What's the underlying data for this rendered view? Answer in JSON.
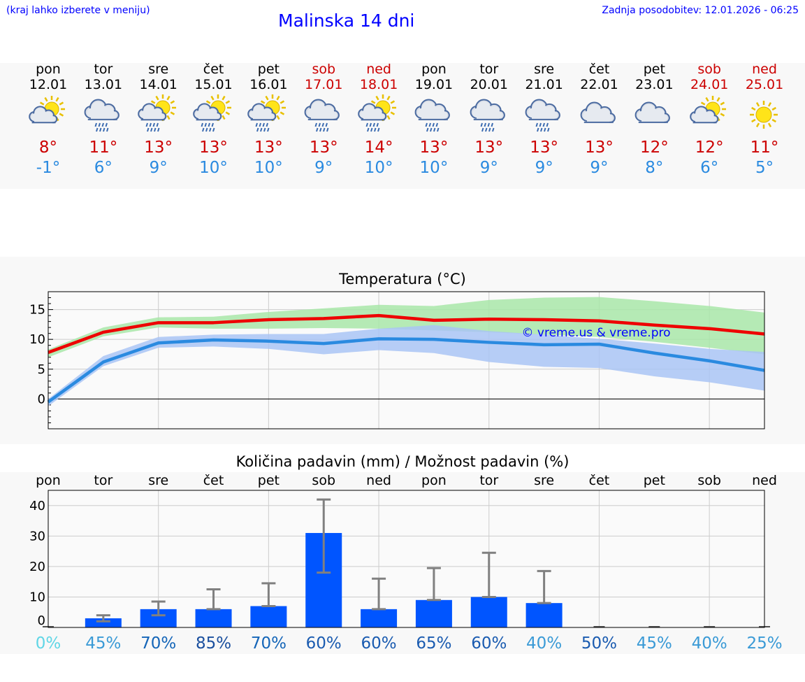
{
  "header": {
    "region_note": "(kraj lahko izberete v meniju)",
    "title": "Malinska 14 dni",
    "updated": "Zadnja posodobitev: 12.01.2026 - 06:25"
  },
  "days": [
    {
      "name": "pon",
      "date": "12.01",
      "weekend": false,
      "icon": "sun-cloud-icon",
      "tmax": "8°",
      "tmin": "-1°"
    },
    {
      "name": "tor",
      "date": "13.01",
      "weekend": false,
      "icon": "cloud-rain-icon",
      "tmax": "11°",
      "tmin": "6°"
    },
    {
      "name": "sre",
      "date": "14.01",
      "weekend": false,
      "icon": "sun-cloud-rain-icon",
      "tmax": "13°",
      "tmin": "9°"
    },
    {
      "name": "čet",
      "date": "15.01",
      "weekend": false,
      "icon": "sun-cloud-rain-icon",
      "tmax": "13°",
      "tmin": "10°"
    },
    {
      "name": "pet",
      "date": "16.01",
      "weekend": false,
      "icon": "sun-cloud-rain-icon",
      "tmax": "13°",
      "tmin": "10°"
    },
    {
      "name": "sob",
      "date": "17.01",
      "weekend": true,
      "icon": "cloud-rain-icon",
      "tmax": "13°",
      "tmin": "9°"
    },
    {
      "name": "ned",
      "date": "18.01",
      "weekend": true,
      "icon": "sun-cloud-rain-icon",
      "tmax": "14°",
      "tmin": "10°"
    },
    {
      "name": "pon",
      "date": "19.01",
      "weekend": false,
      "icon": "cloud-rain-icon",
      "tmax": "13°",
      "tmin": "10°"
    },
    {
      "name": "tor",
      "date": "20.01",
      "weekend": false,
      "icon": "cloud-rain-icon",
      "tmax": "13°",
      "tmin": "9°"
    },
    {
      "name": "sre",
      "date": "21.01",
      "weekend": false,
      "icon": "cloud-rain-icon",
      "tmax": "13°",
      "tmin": "9°"
    },
    {
      "name": "čet",
      "date": "22.01",
      "weekend": false,
      "icon": "cloud-icon",
      "tmax": "13°",
      "tmin": "9°"
    },
    {
      "name": "pet",
      "date": "23.01",
      "weekend": false,
      "icon": "cloud-icon",
      "tmax": "12°",
      "tmin": "8°"
    },
    {
      "name": "sob",
      "date": "24.01",
      "weekend": true,
      "icon": "sun-cloud-icon",
      "tmax": "12°",
      "tmin": "6°"
    },
    {
      "name": "ned",
      "date": "25.01",
      "weekend": true,
      "icon": "sun-icon",
      "tmax": "11°",
      "tmin": "5°"
    }
  ],
  "colors": {
    "max_line": "#ee0000",
    "min_line": "#2a8ae0",
    "max_band": "#a8e6a8",
    "min_band": "#a9c4f5",
    "bar": "#0055ff",
    "err": "#808080",
    "weekend": "#cc0000",
    "watermark": "#0000ff"
  },
  "chart_data": [
    {
      "type": "line",
      "title": "Temperatura (°C)",
      "x": [
        0,
        1,
        2,
        3,
        4,
        5,
        6,
        7,
        8,
        9,
        10,
        11,
        12,
        13
      ],
      "ylim": [
        -5,
        18
      ],
      "yticks": [
        0,
        5,
        10,
        15
      ],
      "grid": true,
      "watermark": "© vreme.us & vreme.pro",
      "series": [
        {
          "name": "max",
          "values": [
            7.8,
            11.2,
            12.8,
            12.8,
            13.3,
            13.5,
            14.0,
            13.2,
            13.4,
            13.3,
            13.1,
            12.4,
            11.8,
            10.9
          ],
          "band_low": [
            7.0,
            10.5,
            12.0,
            11.8,
            11.8,
            11.9,
            11.8,
            11.5,
            11.2,
            10.8,
            10.4,
            9.6,
            8.6,
            7.5
          ],
          "band_high": [
            8.3,
            12.0,
            13.7,
            13.8,
            14.6,
            15.2,
            15.8,
            15.6,
            16.6,
            17.0,
            17.1,
            16.4,
            15.6,
            14.5
          ]
        },
        {
          "name": "min",
          "values": [
            -0.5,
            6.2,
            9.4,
            9.9,
            9.7,
            9.3,
            10.1,
            10.0,
            9.5,
            9.1,
            9.2,
            7.7,
            6.4,
            4.8
          ],
          "band_low": [
            -1.2,
            5.5,
            8.6,
            8.8,
            8.4,
            7.5,
            8.2,
            7.7,
            6.2,
            5.4,
            5.2,
            3.8,
            2.8,
            1.4
          ],
          "band_high": [
            0.0,
            7.2,
            10.4,
            10.8,
            10.9,
            10.9,
            11.8,
            12.4,
            11.4,
            10.8,
            10.1,
            9.3,
            8.4,
            7.9
          ]
        }
      ]
    },
    {
      "type": "bar",
      "title": "Količina padavin (mm) / Možnost padavin (%)",
      "categories": [
        "pon",
        "tor",
        "sre",
        "čet",
        "pet",
        "sob",
        "ned",
        "pon",
        "tor",
        "sre",
        "čet",
        "pet",
        "sob",
        "ned"
      ],
      "values": [
        0,
        3,
        6,
        6,
        7,
        31,
        6,
        9,
        10,
        8,
        0,
        0,
        0,
        0
      ],
      "err_low": [
        0,
        2,
        4,
        6,
        7,
        18,
        6,
        9,
        10,
        8,
        0,
        0,
        0,
        0
      ],
      "err_high": [
        0,
        4,
        8.5,
        12.5,
        14.5,
        42,
        16,
        19.5,
        24.5,
        18.5,
        0,
        0,
        0,
        0
      ],
      "probability": [
        "0%",
        "45%",
        "70%",
        "85%",
        "70%",
        "60%",
        "60%",
        "65%",
        "60%",
        "40%",
        "50%",
        "45%",
        "40%",
        "25%"
      ],
      "prob_colors": [
        "#5fd6e6",
        "#3a9ad6",
        "#1465b8",
        "#1a4f9e",
        "#1465b8",
        "#1a5bb0",
        "#1a5bb0",
        "#1a5bb0",
        "#1a5bb0",
        "#3a9ad6",
        "#1a5bb0",
        "#3a9ad6",
        "#3a9ad6",
        "#3a9ad6"
      ],
      "ylim": [
        0,
        45
      ],
      "yticks": [
        0,
        10,
        20,
        30,
        40
      ],
      "grid": true
    }
  ]
}
